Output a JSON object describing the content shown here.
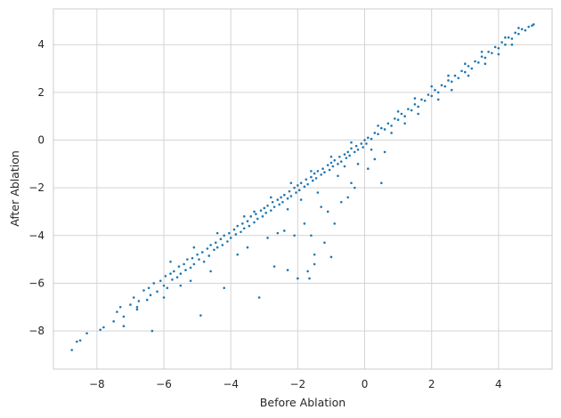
{
  "chart_data": {
    "type": "scatter",
    "title": "",
    "xlabel": "Before Ablation",
    "ylabel": "After Ablation",
    "xlim": [
      -9.3,
      5.6
    ],
    "ylim": [
      -9.6,
      5.5
    ],
    "x_ticks": [
      -8,
      -6,
      -4,
      -2,
      0,
      2,
      4
    ],
    "y_ticks": [
      -8,
      -6,
      -4,
      -2,
      0,
      2,
      4
    ],
    "grid": true,
    "color": "#1f77b4",
    "points": [
      [
        -8.75,
        -8.8
      ],
      [
        -8.6,
        -8.45
      ],
      [
        -8.5,
        -8.4
      ],
      [
        -8.3,
        -8.1
      ],
      [
        -7.9,
        -7.95
      ],
      [
        -7.8,
        -7.85
      ],
      [
        -7.5,
        -7.6
      ],
      [
        -7.4,
        -7.2
      ],
      [
        -7.3,
        -7.0
      ],
      [
        -7.2,
        -7.4
      ],
      [
        -7.0,
        -6.9
      ],
      [
        -6.9,
        -6.6
      ],
      [
        -6.8,
        -7.1
      ],
      [
        -6.75,
        -6.75
      ],
      [
        -6.6,
        -6.3
      ],
      [
        -6.5,
        -6.7
      ],
      [
        -6.45,
        -6.2
      ],
      [
        -6.4,
        -6.5
      ],
      [
        -6.35,
        -8.0
      ],
      [
        -6.3,
        -6.0
      ],
      [
        -6.2,
        -6.35
      ],
      [
        -6.1,
        -5.9
      ],
      [
        -6.0,
        -6.1
      ],
      [
        -5.95,
        -5.7
      ],
      [
        -5.9,
        -6.2
      ],
      [
        -5.8,
        -5.6
      ],
      [
        -5.75,
        -5.85
      ],
      [
        -5.7,
        -5.5
      ],
      [
        -5.6,
        -5.75
      ],
      [
        -5.55,
        -5.3
      ],
      [
        -5.5,
        -5.6
      ],
      [
        -5.4,
        -5.2
      ],
      [
        -5.35,
        -5.45
      ],
      [
        -5.3,
        -5.0
      ],
      [
        -5.2,
        -5.35
      ],
      [
        -5.15,
        -4.95
      ],
      [
        -5.1,
        -5.2
      ],
      [
        -5.0,
        -4.8
      ],
      [
        -4.95,
        -5.0
      ],
      [
        -4.9,
        -7.35
      ],
      [
        -4.85,
        -4.7
      ],
      [
        -4.8,
        -5.1
      ],
      [
        -4.7,
        -4.55
      ],
      [
        -4.65,
        -4.85
      ],
      [
        -4.6,
        -4.4
      ],
      [
        -4.5,
        -4.6
      ],
      [
        -4.45,
        -4.3
      ],
      [
        -4.4,
        -4.5
      ],
      [
        -4.3,
        -4.15
      ],
      [
        -4.25,
        -4.4
      ],
      [
        -4.2,
        -4.0
      ],
      [
        -4.1,
        -4.25
      ],
      [
        -4.05,
        -3.9
      ],
      [
        -4.0,
        -4.1
      ],
      [
        -3.9,
        -3.75
      ],
      [
        -3.85,
        -3.95
      ],
      [
        -3.8,
        -3.6
      ],
      [
        -3.7,
        -3.85
      ],
      [
        -3.65,
        -3.5
      ],
      [
        -3.6,
        -3.7
      ],
      [
        -3.5,
        -3.4
      ],
      [
        -3.45,
        -3.6
      ],
      [
        -3.4,
        -3.2
      ],
      [
        -3.3,
        -3.45
      ],
      [
        -3.25,
        -3.1
      ],
      [
        -3.2,
        -3.3
      ],
      [
        -3.15,
        -6.6
      ],
      [
        -3.1,
        -2.95
      ],
      [
        -3.05,
        -3.2
      ],
      [
        -3.0,
        -2.85
      ],
      [
        -2.95,
        -3.05
      ],
      [
        -2.9,
        -2.75
      ],
      [
        -2.8,
        -2.95
      ],
      [
        -2.75,
        -2.6
      ],
      [
        -2.7,
        -2.8
      ],
      [
        -2.6,
        -2.5
      ],
      [
        -2.55,
        -2.7
      ],
      [
        -2.5,
        -2.4
      ],
      [
        -2.45,
        -2.6
      ],
      [
        -2.4,
        -2.3
      ],
      [
        -2.3,
        -2.45
      ],
      [
        -2.25,
        -2.15
      ],
      [
        -2.2,
        -2.35
      ],
      [
        -2.1,
        -2.0
      ],
      [
        -2.05,
        -2.2
      ],
      [
        -2.0,
        -1.9
      ],
      [
        -1.95,
        -2.1
      ],
      [
        -1.9,
        -1.8
      ],
      [
        -1.8,
        -1.95
      ],
      [
        -1.75,
        -1.65
      ],
      [
        -1.7,
        -1.85
      ],
      [
        -1.6,
        -1.55
      ],
      [
        -1.55,
        -1.7
      ],
      [
        -1.5,
        -1.4
      ],
      [
        -1.45,
        -1.6
      ],
      [
        -1.4,
        -1.3
      ],
      [
        -1.3,
        -1.45
      ],
      [
        -1.25,
        -1.2
      ],
      [
        -1.2,
        -1.35
      ],
      [
        -1.1,
        -1.05
      ],
      [
        -1.05,
        -1.25
      ],
      [
        -1.0,
        -0.95
      ],
      [
        -0.95,
        -1.1
      ],
      [
        -0.9,
        -0.85
      ],
      [
        -0.8,
        -1.0
      ],
      [
        -0.75,
        -0.7
      ],
      [
        -0.7,
        -0.9
      ],
      [
        -0.6,
        -0.6
      ],
      [
        -0.55,
        -0.75
      ],
      [
        -0.5,
        -0.5
      ],
      [
        -0.45,
        -0.65
      ],
      [
        -0.4,
        -0.35
      ],
      [
        -0.3,
        -0.5
      ],
      [
        -0.25,
        -0.25
      ],
      [
        -0.2,
        -0.4
      ],
      [
        -0.1,
        -0.15
      ],
      [
        -0.05,
        -0.3
      ],
      [
        0.0,
        0.0
      ],
      [
        0.05,
        -0.15
      ],
      [
        0.1,
        0.1
      ],
      [
        0.2,
        0.05
      ],
      [
        0.3,
        0.3
      ],
      [
        0.4,
        0.25
      ],
      [
        0.5,
        0.5
      ],
      [
        0.6,
        0.45
      ],
      [
        0.7,
        0.7
      ],
      [
        0.8,
        0.6
      ],
      [
        0.9,
        0.9
      ],
      [
        1.0,
        0.85
      ],
      [
        1.1,
        1.1
      ],
      [
        1.2,
        1.0
      ],
      [
        1.3,
        1.3
      ],
      [
        1.4,
        1.25
      ],
      [
        1.5,
        1.5
      ],
      [
        1.6,
        1.4
      ],
      [
        1.7,
        1.7
      ],
      [
        1.8,
        1.65
      ],
      [
        1.9,
        1.9
      ],
      [
        2.0,
        1.85
      ],
      [
        2.1,
        2.1
      ],
      [
        2.2,
        2.0
      ],
      [
        2.3,
        2.3
      ],
      [
        2.4,
        2.25
      ],
      [
        2.5,
        2.5
      ],
      [
        2.6,
        2.45
      ],
      [
        2.7,
        2.7
      ],
      [
        2.8,
        2.6
      ],
      [
        2.9,
        2.9
      ],
      [
        3.0,
        2.85
      ],
      [
        3.1,
        3.1
      ],
      [
        3.2,
        3.0
      ],
      [
        3.3,
        3.3
      ],
      [
        3.4,
        3.25
      ],
      [
        3.5,
        3.5
      ],
      [
        3.6,
        3.45
      ],
      [
        3.7,
        3.7
      ],
      [
        3.8,
        3.65
      ],
      [
        3.9,
        3.9
      ],
      [
        4.0,
        3.85
      ],
      [
        4.1,
        4.1
      ],
      [
        4.2,
        4.0
      ],
      [
        4.3,
        4.3
      ],
      [
        4.4,
        4.25
      ],
      [
        4.5,
        4.5
      ],
      [
        4.6,
        4.45
      ],
      [
        4.7,
        4.65
      ],
      [
        4.8,
        4.6
      ],
      [
        4.9,
        4.75
      ],
      [
        5.0,
        4.8
      ],
      [
        5.05,
        4.85
      ],
      [
        -2.4,
        -3.8
      ],
      [
        -2.1,
        -4.0
      ],
      [
        -1.8,
        -3.5
      ],
      [
        -1.6,
        -4.0
      ],
      [
        -1.2,
        -4.3
      ],
      [
        -1.0,
        -4.9
      ],
      [
        -1.5,
        -5.2
      ],
      [
        -1.7,
        -5.5
      ],
      [
        -1.65,
        -5.8
      ],
      [
        -2.0,
        -5.8
      ],
      [
        -2.7,
        -5.3
      ],
      [
        -2.3,
        -5.45
      ],
      [
        -1.5,
        -4.8
      ],
      [
        -0.9,
        -3.5
      ],
      [
        -1.1,
        -3.0
      ],
      [
        -0.7,
        -2.6
      ],
      [
        -0.5,
        -2.4
      ],
      [
        -0.3,
        -2.0
      ],
      [
        0.5,
        -1.8
      ],
      [
        0.1,
        -1.2
      ],
      [
        -0.2,
        -1.0
      ],
      [
        0.3,
        -0.8
      ],
      [
        0.6,
        -0.5
      ],
      [
        -0.4,
        -1.8
      ],
      [
        -1.3,
        -2.8
      ],
      [
        -2.6,
        -3.9
      ],
      [
        -3.5,
        -4.5
      ],
      [
        -4.2,
        -6.2
      ],
      [
        -5.5,
        -6.1
      ],
      [
        -6.0,
        -6.6
      ],
      [
        -6.8,
        -7.0
      ],
      [
        -7.2,
        -7.8
      ],
      [
        -3.8,
        -4.8
      ],
      [
        -4.6,
        -5.5
      ],
      [
        -5.2,
        -5.9
      ],
      [
        -2.9,
        -4.1
      ],
      [
        -3.3,
        -3.0
      ],
      [
        -2.3,
        -2.9
      ],
      [
        -1.9,
        -2.5
      ],
      [
        -1.4,
        -2.2
      ],
      [
        -0.8,
        -1.5
      ],
      [
        -0.6,
        -1.1
      ],
      [
        0.2,
        -0.4
      ],
      [
        0.8,
        0.3
      ],
      [
        1.2,
        0.7
      ],
      [
        1.6,
        1.1
      ],
      [
        2.2,
        1.7
      ],
      [
        2.6,
        2.1
      ],
      [
        3.1,
        2.7
      ],
      [
        3.6,
        3.2
      ],
      [
        4.0,
        3.6
      ],
      [
        4.4,
        4.0
      ],
      [
        -5.8,
        -5.1
      ],
      [
        -5.1,
        -4.5
      ],
      [
        -4.4,
        -3.9
      ],
      [
        -3.6,
        -3.2
      ],
      [
        -2.8,
        -2.4
      ],
      [
        -2.2,
        -1.8
      ],
      [
        -1.6,
        -1.3
      ],
      [
        -1.0,
        -0.7
      ],
      [
        -0.4,
        -0.1
      ],
      [
        0.4,
        0.6
      ],
      [
        1.0,
        1.2
      ],
      [
        1.5,
        1.75
      ],
      [
        2.0,
        2.25
      ],
      [
        2.5,
        2.7
      ],
      [
        3.0,
        3.2
      ],
      [
        3.5,
        3.7
      ],
      [
        4.2,
        4.3
      ],
      [
        4.6,
        4.7
      ]
    ]
  }
}
